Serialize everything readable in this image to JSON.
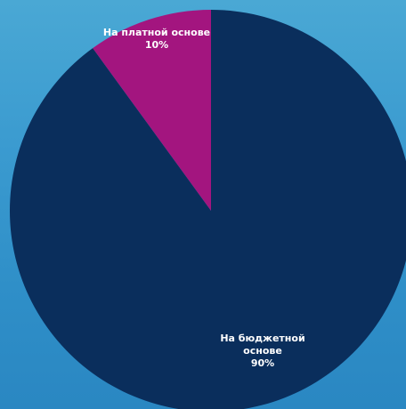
{
  "chart_data": {
    "type": "pie",
    "slices": [
      {
        "label_lines": [
          "На бюджетной",
          "основе"
        ],
        "value": 90,
        "value_label": "90%",
        "color": "#0a2e5c"
      },
      {
        "label_lines": [
          "На платной основе"
        ],
        "value": 10,
        "value_label": "10%",
        "color": "#a3157f"
      }
    ],
    "start_angle_deg": 0,
    "direction": "clockwise-from-top-for-second-slice"
  }
}
